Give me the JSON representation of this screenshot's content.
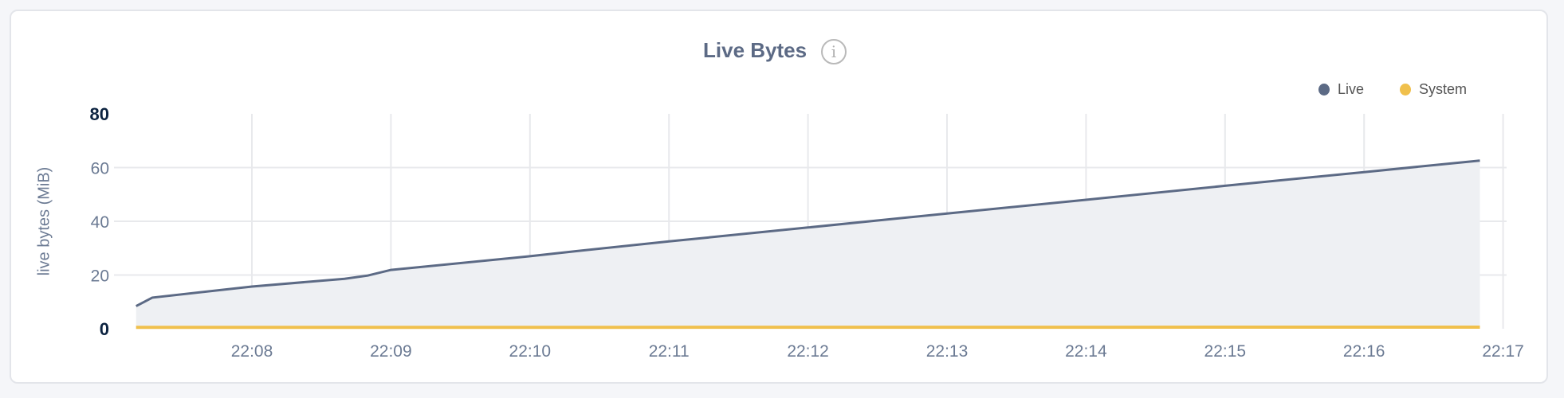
{
  "chart_data": {
    "type": "area",
    "title": "Live Bytes",
    "info_icon": "info-circle-icon",
    "ylabel": "live bytes (MiB)",
    "ylim": [
      0,
      80
    ],
    "yticks": [
      "0",
      "20",
      "40",
      "60",
      "80"
    ],
    "xticks": [
      "22:08",
      "22:09",
      "22:10",
      "22:11",
      "22:12",
      "22:13",
      "22:14",
      "22:15",
      "22:16",
      "22:17"
    ],
    "grid": true,
    "legend_position": "top-right",
    "series": [
      {
        "name": "Live",
        "color": "#5c6a85",
        "fill": "#eef0f3",
        "points": [
          [
            "22:07:10",
            8.4
          ],
          [
            "22:07:17",
            11.6
          ],
          [
            "22:08:00",
            15.7
          ],
          [
            "22:08:40",
            18.6
          ],
          [
            "22:08:50",
            19.8
          ],
          [
            "22:09:00",
            21.9
          ],
          [
            "22:10:00",
            27.0
          ],
          [
            "22:10:20",
            28.9
          ],
          [
            "22:11:00",
            32.5
          ],
          [
            "22:12:00",
            37.7
          ],
          [
            "22:13:00",
            42.9
          ],
          [
            "22:14:00",
            48.0
          ],
          [
            "22:15:00",
            53.2
          ],
          [
            "22:16:00",
            58.3
          ],
          [
            "22:16:50",
            62.6
          ]
        ]
      },
      {
        "name": "System",
        "color": "#f0c04c",
        "points": [
          [
            "22:07:10",
            0.5
          ],
          [
            "22:16:50",
            0.6
          ]
        ]
      }
    ]
  }
}
